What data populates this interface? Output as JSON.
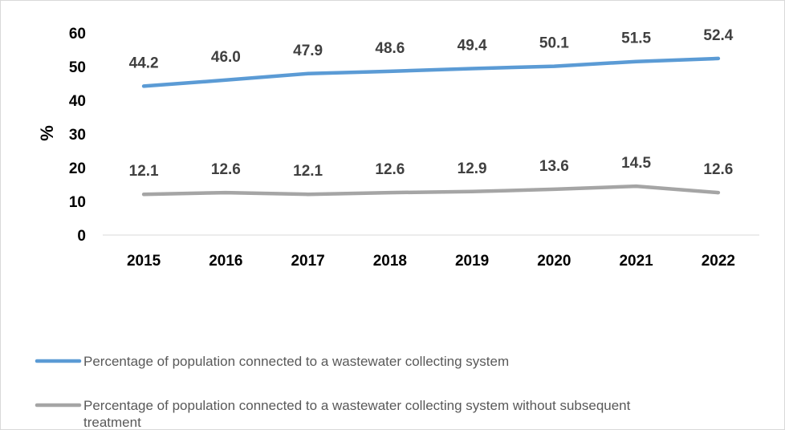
{
  "chart_data": {
    "type": "line",
    "categories": [
      "2015",
      "2016",
      "2017",
      "2018",
      "2019",
      "2020",
      "2021",
      "2022"
    ],
    "series": [
      {
        "name": "Percentage of population connected to a wastewater collecting system",
        "values": [
          44.2,
          46.0,
          47.9,
          48.6,
          49.4,
          50.1,
          51.5,
          52.4
        ],
        "labels": [
          "44.2",
          "46.0",
          "47.9",
          "48.6",
          "49.4",
          "50.1",
          "51.5",
          "52.4"
        ],
        "color": "#5b9bd5"
      },
      {
        "name": "Percentage of population connected to a wastewater collecting system without subsequent treatment",
        "values": [
          12.1,
          12.6,
          12.1,
          12.6,
          12.9,
          13.6,
          14.5,
          12.6
        ],
        "labels": [
          "12.1",
          "12.6",
          "12.1",
          "12.6",
          "12.9",
          "13.6",
          "14.5",
          "12.6"
        ],
        "color": "#a5a5a5"
      }
    ],
    "ylabel": "%",
    "xlabel": "",
    "ylim": [
      0,
      60
    ],
    "yticks": [
      "0",
      "10",
      "20",
      "30",
      "40",
      "50",
      "60"
    ],
    "grid": false,
    "legend_position": "bottom-left"
  }
}
